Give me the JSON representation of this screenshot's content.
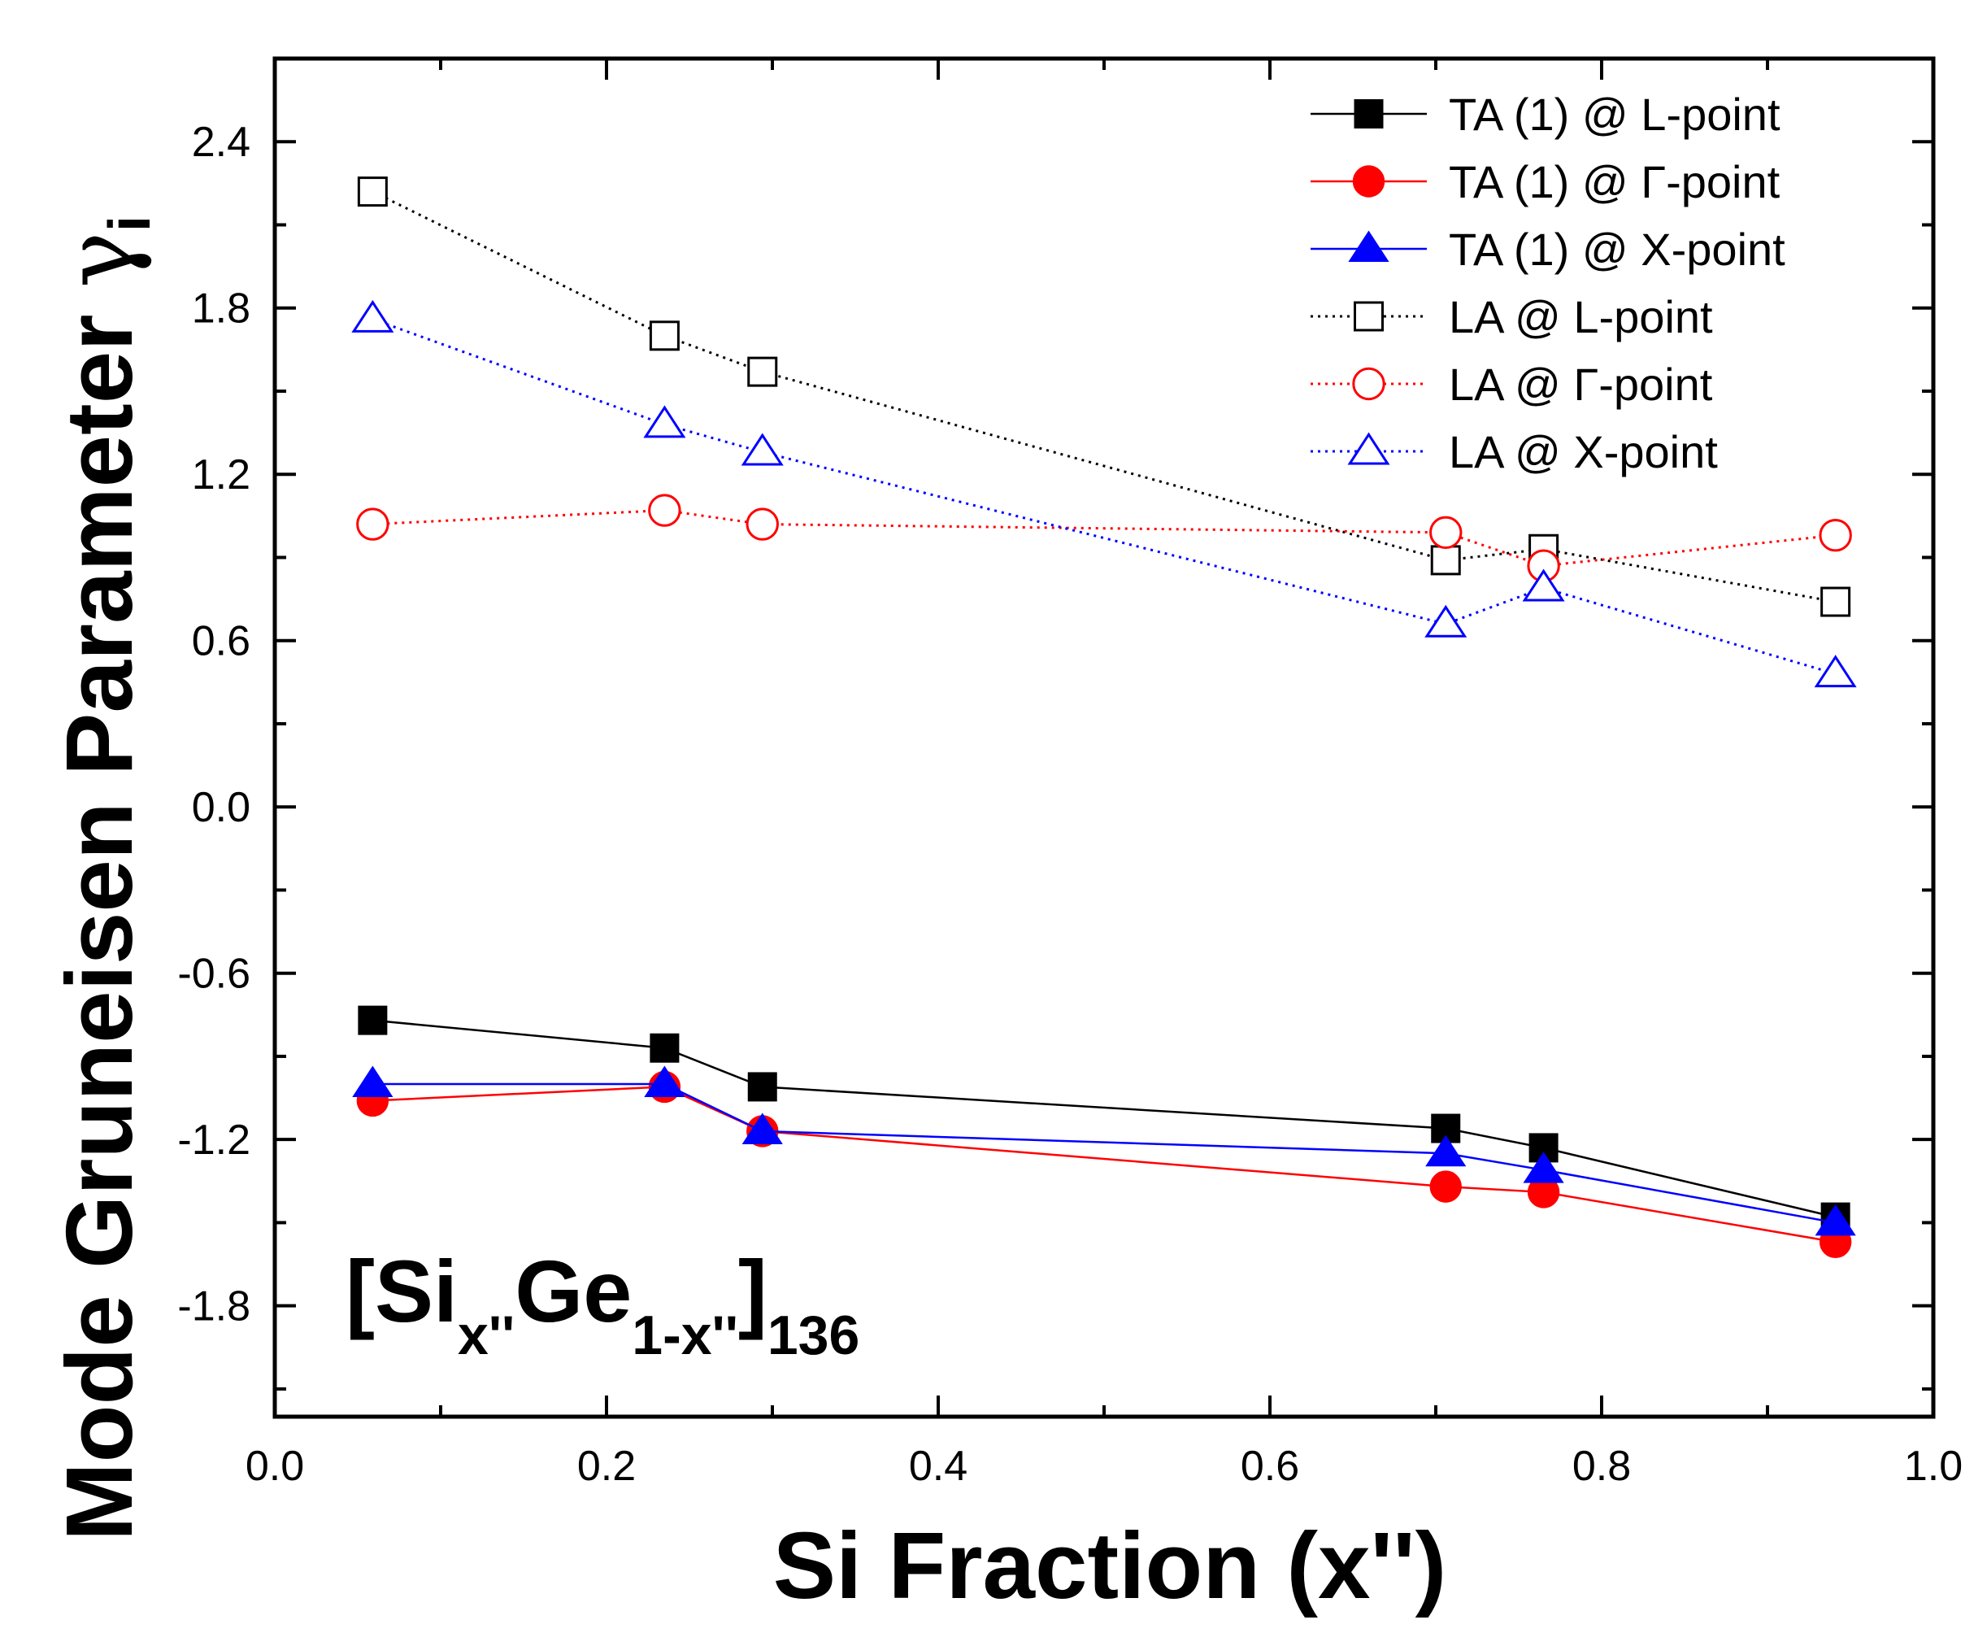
{
  "chart_data": {
    "type": "line",
    "xlabel": "Si Fraction (x'')",
    "ylabel": "Mode Gruneisen Parameter ",
    "ylabel_symbol": "γ",
    "ylabel_subscript": "i",
    "xlim": [
      0.0,
      1.0
    ],
    "ylim": [
      -2.2,
      2.7
    ],
    "xticks": [
      0.0,
      0.2,
      0.4,
      0.6,
      0.8,
      1.0
    ],
    "xtick_labels": [
      "0.0",
      "0.2",
      "0.4",
      "0.6",
      "0.8",
      "1.0"
    ],
    "yticks": [
      -1.8,
      -1.2,
      -0.6,
      0.0,
      0.6,
      1.2,
      1.8,
      2.4
    ],
    "ytick_labels": [
      "-1.8",
      "-1.2",
      "-0.6",
      "0.0",
      "0.6",
      "1.2",
      "1.8",
      "2.4"
    ],
    "legend_position": "top-right",
    "annotation": {
      "open": "[Si",
      "sub1": "x''",
      "mid": "Ge",
      "sub2": "1-x''",
      "close": "]",
      "sub3": "136"
    },
    "series": [
      {
        "name": "TA (1) @ L-point",
        "color": "#000000",
        "marker": "square",
        "filled": true,
        "line": "solid",
        "x": [
          0.059,
          0.235,
          0.294,
          0.706,
          0.765,
          0.941
        ],
        "y": [
          -0.77,
          -0.87,
          -1.01,
          -1.16,
          -1.23,
          -1.48
        ]
      },
      {
        "name": "TA (1) @ Γ-point",
        "color": "#ff0000",
        "marker": "circle",
        "filled": true,
        "line": "solid",
        "x": [
          0.059,
          0.235,
          0.294,
          0.706,
          0.765,
          0.941
        ],
        "y": [
          -1.06,
          -1.01,
          -1.17,
          -1.37,
          -1.39,
          -1.57
        ]
      },
      {
        "name": "TA (1) @ X-point",
        "color": "#0000ff",
        "marker": "triangle",
        "filled": true,
        "line": "solid",
        "x": [
          0.059,
          0.235,
          0.294,
          0.706,
          0.765,
          0.941
        ],
        "y": [
          -1.0,
          -1.0,
          -1.17,
          -1.25,
          -1.31,
          -1.5
        ]
      },
      {
        "name": "LA @ L-point",
        "color": "#000000",
        "marker": "square",
        "filled": false,
        "line": "dotted",
        "x": [
          0.059,
          0.235,
          0.294,
          0.706,
          0.765,
          0.941
        ],
        "y": [
          2.22,
          1.7,
          1.57,
          0.89,
          0.93,
          0.74
        ]
      },
      {
        "name": "LA @ Γ-point",
        "color": "#ff0000",
        "marker": "circle",
        "filled": false,
        "line": "dotted",
        "x": [
          0.059,
          0.235,
          0.294,
          0.706,
          0.765,
          0.941
        ],
        "y": [
          1.02,
          1.07,
          1.02,
          0.99,
          0.87,
          0.98
        ]
      },
      {
        "name": "LA @ X-point",
        "color": "#0000ff",
        "marker": "triangle",
        "filled": false,
        "line": "dotted",
        "x": [
          0.059,
          0.235,
          0.294,
          0.706,
          0.765,
          0.941
        ],
        "y": [
          1.76,
          1.38,
          1.28,
          0.66,
          0.79,
          0.48
        ]
      }
    ]
  }
}
